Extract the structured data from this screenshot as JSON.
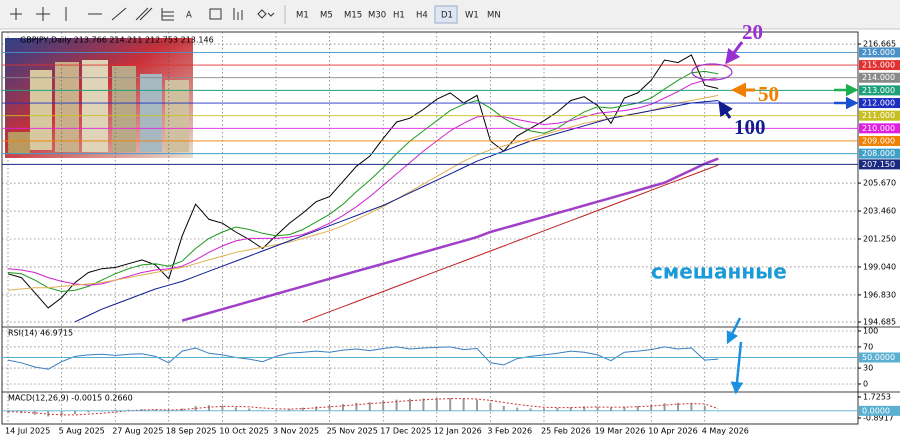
{
  "toolbar": {
    "periods": [
      "M1",
      "M5",
      "M15",
      "M30",
      "H1",
      "H4",
      "D1",
      "W1",
      "MN"
    ],
    "active": "D1"
  },
  "annotation": "смешанные",
  "chart_data": [
    {
      "type": "line",
      "title": "GBPJPY,Daily  213.766 214.211 212.753 213.146",
      "categories": [
        "14 Jul 2025",
        null,
        null,
        null,
        "5 Aug 2025",
        null,
        null,
        null,
        "27 Aug 2025",
        null,
        null,
        null,
        "18 Sep 2025",
        null,
        null,
        null,
        "10 Oct 2025",
        null,
        null,
        null,
        "3 Nov 2025",
        null,
        null,
        null,
        "25 Nov 2025",
        null,
        null,
        null,
        "17 Dec 2025",
        null,
        null,
        null,
        "12 Jan 2026",
        null,
        null,
        null,
        "3 Feb 2026",
        null,
        null,
        null,
        "25 Feb 2026",
        null,
        null,
        null,
        "19 Mar 2026",
        null,
        null,
        null,
        "10 Apr 2026",
        null,
        null,
        null,
        "4 May 2026",
        null
      ],
      "ylim": [
        194.45,
        217.3
      ],
      "yticks": [
        216.665,
        {
          "value": 205.67,
          "label": "205.670"
        },
        {
          "value": 203.46,
          "label": "203.460"
        },
        {
          "value": 201.25,
          "label": "201.250"
        },
        {
          "value": 199.04,
          "label": "199.040"
        },
        {
          "value": 196.83,
          "label": "196.830"
        },
        194.685
      ],
      "grid": true,
      "levels": [
        {
          "value": 216,
          "label": "216.000",
          "color": "#4a90c8"
        },
        {
          "value": 215,
          "label": "215.000",
          "color": "#e03030"
        },
        {
          "value": 214,
          "label": "214.000",
          "color": "#8a8a8a"
        },
        {
          "value": 213,
          "label": "213.000",
          "color": "#1ea07a"
        },
        {
          "value": 212,
          "label": "212.000",
          "color": "#1c2ec0"
        },
        {
          "value": 211,
          "label": "211.000",
          "color": "#c8c020"
        },
        {
          "value": 210,
          "label": "210.000",
          "color": "#e020e0"
        },
        {
          "value": 209,
          "label": "209.000",
          "color": "#f08000"
        },
        {
          "value": 208,
          "label": "208.000",
          "color": "#40a0c8"
        },
        {
          "value": 207.15,
          "label": "207.150",
          "color": "#1a2a80"
        }
      ],
      "series": [
        {
          "color": "#000000",
          "values": [
            198.5,
            198.2,
            197.0,
            195.8,
            196.6,
            197.8,
            198.6,
            198.9,
            199.0,
            199.3,
            199.6,
            199.2,
            198.1,
            201.5,
            204.0,
            202.8,
            202.5,
            201.8,
            201.2,
            200.5,
            201.5,
            202.5,
            203.3,
            204.2,
            204.6,
            205.8,
            207.0,
            207.8,
            209.2,
            210.5,
            210.8,
            211.5,
            212.3,
            212.8,
            212.0,
            212.6,
            209.0,
            208.2,
            209.4,
            210.0,
            210.6,
            211.3,
            212.2,
            212.5,
            211.8,
            210.4,
            212.4,
            212.8,
            213.8,
            215.4,
            215.2,
            215.8,
            213.4,
            213.146
          ]
        },
        {
          "name": "20",
          "color": "#1a9a1a",
          "values": [
            198.6,
            198.5,
            198.0,
            197.4,
            197.1,
            197.2,
            197.5,
            198.0,
            198.5,
            198.9,
            199.2,
            199.3,
            199.1,
            199.5,
            200.5,
            201.3,
            201.8,
            202.2,
            202.0,
            201.7,
            201.5,
            201.6,
            202.0,
            202.6,
            203.2,
            204.0,
            205.0,
            205.9,
            206.9,
            208.0,
            209.0,
            209.8,
            210.6,
            211.4,
            211.9,
            212.2,
            211.6,
            210.8,
            210.2,
            209.8,
            209.6,
            210.0,
            210.7,
            211.3,
            211.7,
            211.6,
            211.8,
            212.0,
            212.4,
            213.1,
            213.8,
            214.4,
            214.5,
            214.3
          ]
        },
        {
          "color": "#d020d0",
          "values": [
            198.9,
            198.8,
            198.6,
            198.2,
            197.9,
            197.7,
            197.6,
            197.7,
            198.0,
            198.3,
            198.6,
            198.8,
            198.9,
            199.1,
            199.6,
            200.2,
            200.7,
            201.1,
            201.3,
            201.3,
            201.3,
            201.4,
            201.6,
            202.0,
            202.5,
            203.1,
            203.8,
            204.6,
            205.5,
            206.4,
            207.3,
            208.2,
            209.0,
            209.8,
            210.4,
            210.9,
            211.0,
            210.9,
            210.7,
            210.5,
            210.3,
            210.4,
            210.6,
            210.9,
            211.2,
            211.3,
            211.4,
            211.6,
            211.9,
            212.4,
            212.9,
            213.5,
            213.8,
            214.0
          ]
        },
        {
          "name": "50",
          "color": "#e0b050",
          "values": [
            197.2,
            197.3,
            197.4,
            197.4,
            197.5,
            197.6,
            197.7,
            197.8,
            198.0,
            198.2,
            198.4,
            198.6,
            198.8,
            199.0,
            199.3,
            199.6,
            199.9,
            200.2,
            200.4,
            200.6,
            200.8,
            201.0,
            201.3,
            201.6,
            201.9,
            202.3,
            202.8,
            203.3,
            203.8,
            204.4,
            205.0,
            205.6,
            206.2,
            206.8,
            207.4,
            207.9,
            208.3,
            208.6,
            208.9,
            209.2,
            209.5,
            209.8,
            210.1,
            210.4,
            210.6,
            210.8,
            211.0,
            211.2,
            211.4,
            211.7,
            212.0,
            212.2,
            212.4,
            212.6
          ]
        },
        {
          "name": "100",
          "color": "#101c90",
          "values": [
            null,
            null,
            null,
            null,
            null,
            194.7,
            195.2,
            195.7,
            196.1,
            196.5,
            196.9,
            197.3,
            197.6,
            197.9,
            198.3,
            198.7,
            199.1,
            199.5,
            199.9,
            200.3,
            200.7,
            201.1,
            201.5,
            201.9,
            202.3,
            202.7,
            203.1,
            203.5,
            203.9,
            204.4,
            204.9,
            205.4,
            205.9,
            206.4,
            206.9,
            207.4,
            207.8,
            208.2,
            208.6,
            209.0,
            209.3,
            209.6,
            209.9,
            210.2,
            210.5,
            210.8,
            211.0,
            211.2,
            211.4,
            211.6,
            211.8,
            212.0,
            212.1,
            212.2
          ]
        },
        {
          "color": "#a040c8",
          "width": 2.5,
          "values": [
            null,
            null,
            null,
            null,
            null,
            null,
            null,
            null,
            null,
            null,
            null,
            null,
            null,
            194.8,
            195.1,
            195.4,
            195.7,
            196.0,
            196.3,
            196.6,
            196.9,
            197.2,
            197.5,
            197.8,
            198.1,
            198.4,
            198.7,
            199.0,
            199.3,
            199.6,
            199.9,
            200.2,
            200.5,
            200.8,
            201.1,
            201.4,
            201.8,
            202.1,
            202.4,
            202.7,
            203.0,
            203.3,
            203.6,
            203.9,
            204.2,
            204.5,
            204.8,
            205.1,
            205.4,
            205.7,
            206.2,
            206.7,
            207.2,
            207.6
          ]
        },
        {
          "color": "#c02020",
          "values": [
            null,
            null,
            null,
            null,
            null,
            null,
            null,
            null,
            null,
            null,
            null,
            null,
            null,
            null,
            null,
            null,
            null,
            null,
            null,
            null,
            null,
            null,
            194.7,
            195.1,
            195.5,
            195.9,
            196.3,
            196.7,
            197.1,
            197.5,
            197.9,
            198.3,
            198.7,
            199.1,
            199.5,
            199.9,
            200.3,
            200.7,
            201.1,
            201.5,
            201.9,
            202.3,
            202.7,
            203.1,
            203.5,
            203.9,
            204.3,
            204.7,
            205.1,
            205.5,
            205.9,
            206.3,
            206.7,
            207.1
          ]
        }
      ]
    },
    {
      "type": "line",
      "title": "RSI(14) 46.9715",
      "ylim": [
        0,
        100
      ],
      "yticks": [
        100,
        70,
        30,
        0
      ],
      "grid": true,
      "levels": [
        {
          "value": 50,
          "label": "50.0000",
          "color": "#5ab0d0"
        }
      ],
      "series": [
        {
          "color": "#3a7fc0",
          "values": [
            45,
            40,
            32,
            28,
            42,
            52,
            55,
            56,
            54,
            56,
            57,
            52,
            40,
            62,
            68,
            58,
            55,
            50,
            47,
            42,
            52,
            58,
            60,
            62,
            60,
            64,
            66,
            63,
            67,
            70,
            66,
            68,
            69,
            70,
            65,
            67,
            40,
            36,
            48,
            52,
            55,
            58,
            62,
            60,
            55,
            44,
            60,
            62,
            65,
            70,
            66,
            68,
            45,
            46.9715
          ]
        }
      ]
    },
    {
      "type": "bar",
      "title": "MACD(12,26,9) -0.0015 0.2660",
      "ylim": [
        -0.8917,
        1.7253
      ],
      "yticks": [
        1.7253,
        -0.8917
      ],
      "grid": false,
      "levels": [
        {
          "value": 0,
          "label": "0.0000",
          "color": "#5ab0d0"
        }
      ],
      "series": [
        {
          "color": "#9a9a9a",
          "values": [
            -0.2,
            -0.3,
            -0.5,
            -0.7,
            -0.6,
            -0.4,
            -0.2,
            0,
            0.1,
            0.15,
            0.2,
            0.15,
            -0.05,
            0.3,
            0.6,
            0.7,
            0.6,
            0.45,
            0.3,
            0.1,
            0.1,
            0.25,
            0.4,
            0.55,
            0.7,
            0.85,
            1.0,
            1.1,
            1.25,
            1.4,
            1.5,
            1.55,
            1.6,
            1.6,
            1.5,
            1.4,
            1.0,
            0.6,
            0.4,
            0.3,
            0.3,
            0.35,
            0.45,
            0.55,
            0.5,
            0.4,
            0.5,
            0.6,
            0.75,
            0.95,
            1.0,
            1.0,
            0.6,
            -0.0015
          ]
        },
        {
          "color": "#d03030",
          "kind": "line",
          "values": [
            -0.1,
            -0.15,
            -0.25,
            -0.4,
            -0.5,
            -0.5,
            -0.4,
            -0.3,
            -0.15,
            0,
            0.1,
            0.15,
            0.1,
            0.15,
            0.3,
            0.45,
            0.55,
            0.55,
            0.5,
            0.35,
            0.25,
            0.22,
            0.28,
            0.38,
            0.5,
            0.62,
            0.76,
            0.9,
            1.02,
            1.15,
            1.27,
            1.38,
            1.46,
            1.52,
            1.52,
            1.48,
            1.3,
            1.05,
            0.8,
            0.6,
            0.45,
            0.4,
            0.4,
            0.45,
            0.48,
            0.45,
            0.47,
            0.52,
            0.6,
            0.72,
            0.83,
            0.92,
            0.85,
            0.266
          ]
        }
      ]
    }
  ]
}
